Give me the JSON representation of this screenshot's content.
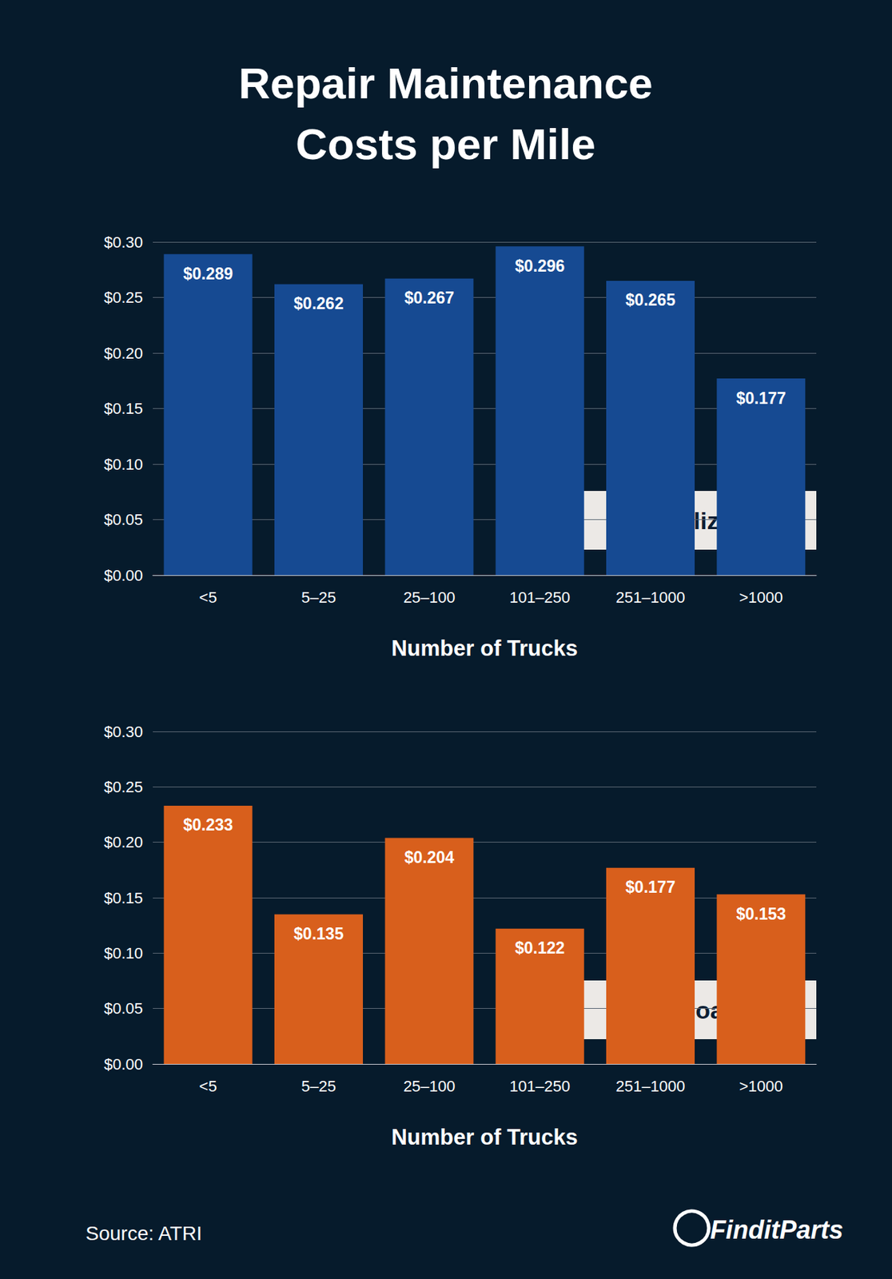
{
  "title": [
    "Repair Maintenance",
    "Costs per Mile"
  ],
  "source": "Source: ATRI",
  "logo": "FinditParts",
  "chart_data": [
    {
      "type": "bar",
      "annotation": "Specialized",
      "x_label": "Number of Trucks",
      "categories": [
        "<5",
        "5–25",
        "25–100",
        "101–250",
        "251–1000",
        ">1000"
      ],
      "values": [
        0.289,
        0.262,
        0.267,
        0.296,
        0.265,
        0.177
      ],
      "value_labels": [
        "$0.289",
        "$0.262",
        "$0.267",
        "$0.296",
        "$0.265",
        "$0.177"
      ],
      "data_labels": true,
      "color": "#164a92",
      "ylim": [
        0,
        0.3
      ],
      "yticks": [
        {
          "value": 0,
          "label": "$0.00"
        },
        {
          "value": 0.05,
          "label": "$0.05"
        },
        {
          "value": 0.1,
          "label": "$0.10"
        },
        {
          "value": 0.15,
          "label": "$0.15"
        },
        {
          "value": 0.2,
          "label": "$0.20"
        },
        {
          "value": 0.25,
          "label": "$0.25"
        },
        {
          "value": 0.3,
          "label": "$0.30"
        }
      ],
      "grid": true
    },
    {
      "type": "bar",
      "annotation": "Truckload",
      "x_label": "Number of Trucks",
      "categories": [
        "<5",
        "5–25",
        "25–100",
        "101–250",
        "251–1000",
        ">1000"
      ],
      "values": [
        0.233,
        0.135,
        0.204,
        0.122,
        0.177,
        0.153
      ],
      "value_labels": [
        "$0.233",
        "$0.135",
        "$0.204",
        "$0.122",
        "$0.177",
        "$0.153"
      ],
      "data_labels": true,
      "color": "#d85f1c",
      "ylim": [
        0,
        0.3
      ],
      "yticks": [
        {
          "value": 0,
          "label": "$0.00"
        },
        {
          "value": 0.05,
          "label": "$0.05"
        },
        {
          "value": 0.1,
          "label": "$0.10"
        },
        {
          "value": 0.15,
          "label": "$0.15"
        },
        {
          "value": 0.2,
          "label": "$0.20"
        },
        {
          "value": 0.25,
          "label": "$0.25"
        },
        {
          "value": 0.3,
          "label": "$0.30"
        }
      ],
      "grid": true
    }
  ]
}
